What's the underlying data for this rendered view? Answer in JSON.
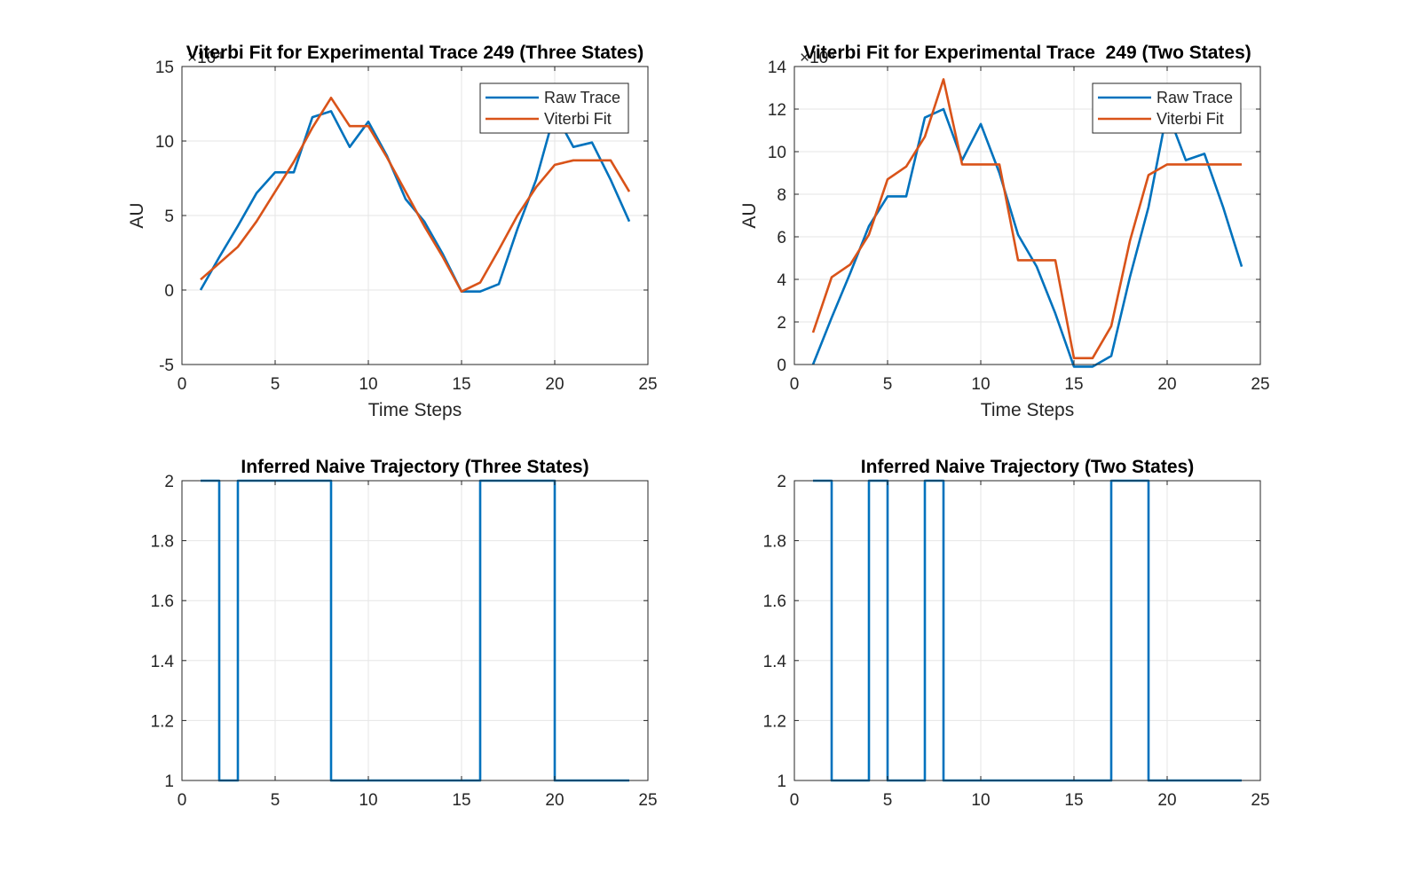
{
  "colors": {
    "raw_trace": "#0072BD",
    "viterbi_fit": "#D95319",
    "grid": "#E6E6E6",
    "axes": "#262626"
  },
  "chart_data": [
    {
      "type": "line",
      "title": "Viterbi Fit for Experimental Trace 249 (Three States)",
      "xlabel": "Time Steps",
      "ylabel": "AU",
      "exponent_label": "×10⁴",
      "xlim": [
        0,
        25
      ],
      "ylim": [
        -5,
        15
      ],
      "xticks": [
        0,
        5,
        10,
        15,
        20,
        25
      ],
      "yticks": [
        -5,
        0,
        5,
        10,
        15
      ],
      "grid": true,
      "legend": "top-right",
      "x": [
        1,
        2,
        3,
        4,
        5,
        6,
        7,
        8,
        9,
        10,
        11,
        12,
        13,
        14,
        15,
        16,
        17,
        18,
        19,
        20,
        21,
        22,
        23,
        24
      ],
      "series": [
        {
          "name": "Raw Trace",
          "color_key": "raw_trace",
          "values": [
            0.0,
            2.2,
            4.3,
            6.5,
            7.9,
            7.9,
            11.6,
            12.0,
            9.6,
            11.3,
            9.0,
            6.1,
            4.6,
            2.4,
            -0.1,
            -0.1,
            0.4,
            4.1,
            7.4,
            11.9,
            9.6,
            9.9,
            7.4,
            4.6
          ]
        },
        {
          "name": "Viterbi Fit",
          "color_key": "viterbi_fit",
          "values": [
            0.7,
            1.8,
            2.9,
            4.6,
            6.6,
            8.6,
            10.9,
            12.9,
            11.0,
            11.0,
            8.9,
            6.6,
            4.3,
            2.2,
            -0.1,
            0.5,
            2.7,
            5.0,
            6.9,
            8.4,
            8.7,
            8.7,
            8.7,
            6.6
          ]
        }
      ]
    },
    {
      "type": "line",
      "title": "Viterbi Fit for Experimental Trace  249 (Two States)",
      "xlabel": "Time Steps",
      "ylabel": "AU",
      "exponent_label": "×10⁴",
      "xlim": [
        0,
        25
      ],
      "ylim": [
        0,
        14
      ],
      "xticks": [
        0,
        5,
        10,
        15,
        20,
        25
      ],
      "yticks": [
        0,
        2,
        4,
        6,
        8,
        10,
        12,
        14
      ],
      "grid": true,
      "legend": "top-right",
      "x": [
        1,
        2,
        3,
        4,
        5,
        6,
        7,
        8,
        9,
        10,
        11,
        12,
        13,
        14,
        15,
        16,
        17,
        18,
        19,
        20,
        21,
        22,
        23,
        24
      ],
      "series": [
        {
          "name": "Raw Trace",
          "color_key": "raw_trace",
          "values": [
            0.0,
            2.2,
            4.3,
            6.5,
            7.9,
            7.9,
            11.6,
            12.0,
            9.6,
            11.3,
            9.0,
            6.1,
            4.6,
            2.4,
            -0.1,
            -0.1,
            0.4,
            4.1,
            7.4,
            11.9,
            9.6,
            9.9,
            7.4,
            4.6
          ]
        },
        {
          "name": "Viterbi Fit",
          "color_key": "viterbi_fit",
          "values": [
            1.5,
            4.1,
            4.7,
            6.1,
            8.7,
            9.3,
            10.7,
            13.4,
            9.4,
            9.4,
            9.4,
            4.9,
            4.9,
            4.9,
            0.3,
            0.3,
            1.8,
            5.8,
            8.9,
            9.4,
            9.4,
            9.4,
            9.4,
            9.4
          ]
        }
      ]
    },
    {
      "type": "line",
      "step": true,
      "title": "Inferred Naive Trajectory (Three States)",
      "xlabel": "",
      "ylabel": "",
      "xlim": [
        0,
        25
      ],
      "ylim": [
        1,
        2
      ],
      "xticks": [
        0,
        5,
        10,
        15,
        20,
        25
      ],
      "yticks": [
        1,
        1.2,
        1.4,
        1.6,
        1.8,
        2
      ],
      "grid": true,
      "x": [
        1,
        2,
        3,
        4,
        5,
        6,
        7,
        8,
        9,
        10,
        11,
        12,
        13,
        14,
        15,
        16,
        17,
        18,
        19,
        20,
        21,
        22,
        23,
        24
      ],
      "series": [
        {
          "color_key": "raw_trace",
          "values": [
            2,
            1,
            2,
            2,
            2,
            2,
            2,
            1,
            1,
            1,
            1,
            1,
            1,
            1,
            1,
            2,
            2,
            2,
            2,
            1,
            1,
            1,
            1,
            1
          ]
        }
      ]
    },
    {
      "type": "line",
      "step": true,
      "title": "Inferred Naive Trajectory (Two States)",
      "xlabel": "",
      "ylabel": "",
      "xlim": [
        0,
        25
      ],
      "ylim": [
        1,
        2
      ],
      "xticks": [
        0,
        5,
        10,
        15,
        20,
        25
      ],
      "yticks": [
        1,
        1.2,
        1.4,
        1.6,
        1.8,
        2
      ],
      "grid": true,
      "x": [
        1,
        2,
        3,
        4,
        5,
        6,
        7,
        8,
        9,
        10,
        11,
        12,
        13,
        14,
        15,
        16,
        17,
        18,
        19,
        20,
        21,
        22,
        23,
        24
      ],
      "series": [
        {
          "color_key": "raw_trace",
          "values": [
            2,
            1,
            1,
            2,
            1,
            1,
            2,
            1,
            1,
            1,
            1,
            1,
            1,
            1,
            1,
            1,
            2,
            2,
            1,
            1,
            1,
            1,
            1,
            1
          ]
        }
      ]
    }
  ]
}
